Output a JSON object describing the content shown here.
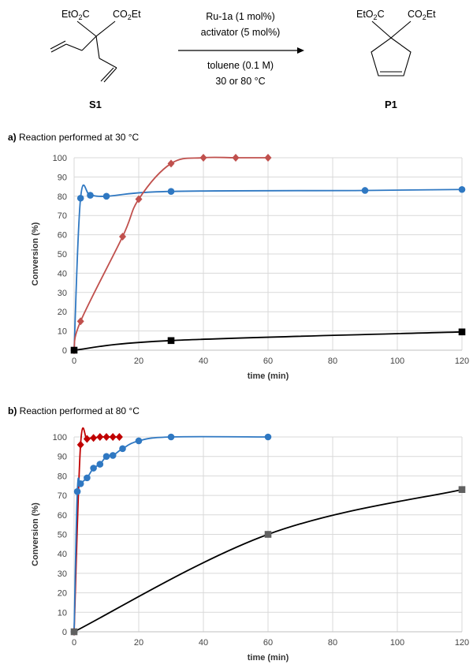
{
  "scheme": {
    "reactant_substituent_left": "EtO2C",
    "reactant_substituent_right": "CO2Et",
    "product_substituent_left": "EtO2C",
    "product_substituent_right": "CO2Et",
    "conditions": [
      "Ru-1a (1 mol%)",
      "activator (5 mol%)",
      "toluene (0.1 M)",
      "30 or 80 °C"
    ],
    "reactant_label": "S1",
    "product_label": "P1"
  },
  "panels": [
    {
      "tag": "a)",
      "caption": "Reaction performed at 30 °C"
    },
    {
      "tag": "b)",
      "caption": "Reaction performed at 80 °C"
    }
  ],
  "chart_data": [
    {
      "type": "scatter",
      "title": "",
      "xlabel": "time (min)",
      "ylabel": "Conversion (%)",
      "xlim": [
        0,
        120
      ],
      "ylim": [
        0,
        100
      ],
      "xticks": [
        0,
        20,
        40,
        60,
        80,
        100,
        120
      ],
      "yticks": [
        0,
        10,
        20,
        30,
        40,
        50,
        60,
        70,
        80,
        90,
        100
      ],
      "grid": true,
      "series": [
        {
          "color": "#2f78c2",
          "marker": "circle",
          "x": [
            0,
            2,
            5,
            10,
            30,
            90,
            120
          ],
          "y": [
            0,
            79,
            80.5,
            80,
            82.5,
            83,
            83.5
          ]
        },
        {
          "color": "#c0504d",
          "marker": "diamond",
          "x": [
            0,
            2,
            15,
            20,
            30,
            40,
            50,
            60
          ],
          "y": [
            0,
            15,
            59,
            78.5,
            97,
            100,
            100,
            100
          ]
        },
        {
          "color": "#000000",
          "marker": "square",
          "x": [
            0,
            30,
            120
          ],
          "y": [
            0,
            5,
            9.5
          ]
        }
      ]
    },
    {
      "type": "scatter",
      "title": "",
      "xlabel": "time (min)",
      "ylabel": "Conversion (%)",
      "xlim": [
        0,
        120
      ],
      "ylim": [
        0,
        100
      ],
      "xticks": [
        0,
        20,
        40,
        60,
        80,
        100,
        120
      ],
      "yticks": [
        0,
        10,
        20,
        30,
        40,
        50,
        60,
        70,
        80,
        90,
        100
      ],
      "grid": true,
      "series": [
        {
          "color": "#c00000",
          "marker": "diamond",
          "x": [
            0,
            2,
            4,
            6,
            8,
            10,
            12,
            14
          ],
          "y": [
            0,
            96,
            99,
            99.5,
            100,
            100,
            100,
            100
          ]
        },
        {
          "color": "#2f78c2",
          "marker": "circle",
          "x": [
            0,
            1,
            2,
            4,
            6,
            8,
            10,
            12,
            15,
            20,
            30,
            60
          ],
          "y": [
            0,
            72,
            76,
            79,
            84,
            86,
            90,
            90.5,
            94,
            98,
            100,
            100
          ]
        },
        {
          "color": "#000000",
          "marker": "square",
          "fill": "#606060",
          "x": [
            0,
            60,
            120
          ],
          "y": [
            0,
            50,
            73
          ]
        }
      ]
    }
  ]
}
